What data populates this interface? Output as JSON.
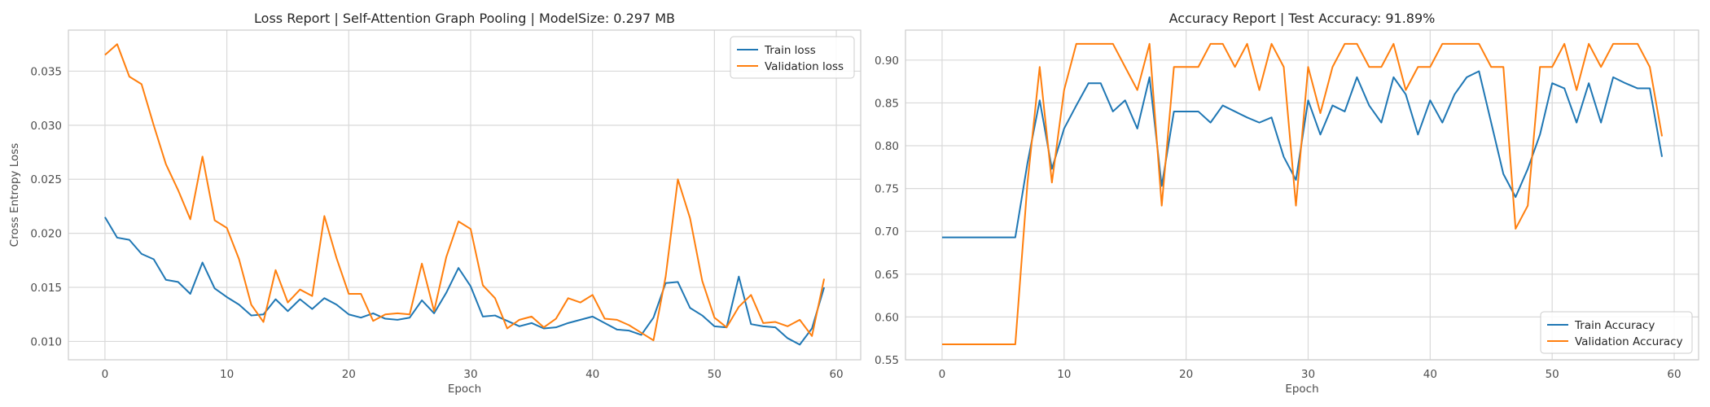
{
  "chart_data": [
    {
      "type": "line",
      "title": "Loss Report | Self-Attention Graph Pooling | ModelSize: 0.297 MB",
      "xlabel": "Epoch",
      "ylabel": "Cross Entropy Loss",
      "xlim": [
        -3,
        62
      ],
      "ylim": [
        0.0083,
        0.0388
      ],
      "xticks": [
        0,
        10,
        20,
        30,
        40,
        50,
        60
      ],
      "yticks": [
        0.01,
        0.015,
        0.02,
        0.025,
        0.03,
        0.035
      ],
      "ytick_labels": [
        "0.010",
        "0.015",
        "0.020",
        "0.025",
        "0.030",
        "0.035"
      ],
      "grid": true,
      "legend_position": "upper right",
      "x": [
        0,
        1,
        2,
        3,
        4,
        5,
        6,
        7,
        8,
        9,
        10,
        11,
        12,
        13,
        14,
        15,
        16,
        17,
        18,
        19,
        20,
        21,
        22,
        23,
        24,
        25,
        26,
        27,
        28,
        29,
        30,
        31,
        32,
        33,
        34,
        35,
        36,
        37,
        38,
        39,
        40,
        41,
        42,
        43,
        44,
        45,
        46,
        47,
        48,
        49,
        50,
        51,
        52,
        53,
        54,
        55,
        56,
        57,
        58,
        59
      ],
      "series": [
        {
          "name": "Train loss",
          "color": "#1f77b4",
          "values": [
            0.0215,
            0.0196,
            0.0194,
            0.0181,
            0.0176,
            0.0157,
            0.0155,
            0.0144,
            0.0173,
            0.0149,
            0.0141,
            0.0134,
            0.0124,
            0.0125,
            0.0139,
            0.0128,
            0.0139,
            0.013,
            0.014,
            0.0134,
            0.0125,
            0.0122,
            0.0126,
            0.0121,
            0.012,
            0.0122,
            0.0138,
            0.0126,
            0.0145,
            0.0168,
            0.0151,
            0.0123,
            0.0124,
            0.0119,
            0.0114,
            0.0117,
            0.0112,
            0.0113,
            0.0117,
            0.012,
            0.0123,
            0.0117,
            0.0111,
            0.011,
            0.0106,
            0.0122,
            0.0154,
            0.0155,
            0.0131,
            0.0124,
            0.0114,
            0.0113,
            0.016,
            0.0116,
            0.0114,
            0.0113,
            0.0103,
            0.0097,
            0.0112,
            0.015
          ]
        },
        {
          "name": "Validation loss",
          "color": "#ff7f0e",
          "values": [
            0.0365,
            0.0375,
            0.0345,
            0.0338,
            0.03,
            0.0264,
            0.024,
            0.0213,
            0.0271,
            0.0212,
            0.0205,
            0.0176,
            0.0134,
            0.0118,
            0.0166,
            0.0136,
            0.0148,
            0.0142,
            0.0216,
            0.0177,
            0.0144,
            0.0144,
            0.0119,
            0.0125,
            0.0126,
            0.0125,
            0.0172,
            0.0128,
            0.0178,
            0.0211,
            0.0204,
            0.0152,
            0.014,
            0.0112,
            0.012,
            0.0123,
            0.0113,
            0.0121,
            0.014,
            0.0136,
            0.0143,
            0.0121,
            0.012,
            0.0115,
            0.0108,
            0.0101,
            0.016,
            0.025,
            0.0214,
            0.0156,
            0.0122,
            0.0113,
            0.0132,
            0.0143,
            0.0117,
            0.0118,
            0.0114,
            0.012,
            0.0105,
            0.0158
          ]
        }
      ]
    },
    {
      "type": "line",
      "title": "Accuracy Report | Test Accuracy: 91.89%",
      "xlabel": "Epoch",
      "ylabel": "",
      "xlim": [
        -3,
        62
      ],
      "ylim": [
        0.55,
        0.935
      ],
      "xticks": [
        0,
        10,
        20,
        30,
        40,
        50,
        60
      ],
      "yticks": [
        0.55,
        0.6,
        0.65,
        0.7,
        0.75,
        0.8,
        0.85,
        0.9
      ],
      "ytick_labels": [
        "0.55",
        "0.60",
        "0.65",
        "0.70",
        "0.75",
        "0.80",
        "0.85",
        "0.90"
      ],
      "grid": true,
      "legend_position": "lower right",
      "x": [
        0,
        1,
        2,
        3,
        4,
        5,
        6,
        7,
        8,
        9,
        10,
        11,
        12,
        13,
        14,
        15,
        16,
        17,
        18,
        19,
        20,
        21,
        22,
        23,
        24,
        25,
        26,
        27,
        28,
        29,
        30,
        31,
        32,
        33,
        34,
        35,
        36,
        37,
        38,
        39,
        40,
        41,
        42,
        43,
        44,
        45,
        46,
        47,
        48,
        49,
        50,
        51,
        52,
        53,
        54,
        55,
        56,
        57,
        58,
        59
      ],
      "series": [
        {
          "name": "Train Accuracy",
          "color": "#1f77b4",
          "values": [
            0.693,
            0.693,
            0.693,
            0.693,
            0.693,
            0.693,
            0.693,
            0.78,
            0.853,
            0.773,
            0.82,
            0.847,
            0.873,
            0.873,
            0.84,
            0.853,
            0.82,
            0.88,
            0.753,
            0.84,
            0.84,
            0.84,
            0.827,
            0.847,
            0.84,
            0.833,
            0.827,
            0.833,
            0.787,
            0.76,
            0.853,
            0.813,
            0.847,
            0.84,
            0.88,
            0.847,
            0.827,
            0.88,
            0.86,
            0.813,
            0.853,
            0.827,
            0.86,
            0.88,
            0.887,
            0.827,
            0.767,
            0.74,
            0.773,
            0.813,
            0.873,
            0.867,
            0.827,
            0.873,
            0.827,
            0.88,
            0.873,
            0.867,
            0.867,
            0.787
          ]
        },
        {
          "name": "Validation Accuracy",
          "color": "#ff7f0e",
          "values": [
            0.568,
            0.568,
            0.568,
            0.568,
            0.568,
            0.568,
            0.568,
            0.757,
            0.892,
            0.757,
            0.865,
            0.919,
            0.919,
            0.919,
            0.919,
            0.892,
            0.865,
            0.919,
            0.73,
            0.892,
            0.892,
            0.892,
            0.919,
            0.919,
            0.892,
            0.919,
            0.865,
            0.919,
            0.892,
            0.73,
            0.892,
            0.838,
            0.892,
            0.919,
            0.919,
            0.892,
            0.892,
            0.919,
            0.865,
            0.892,
            0.892,
            0.919,
            0.919,
            0.919,
            0.919,
            0.892,
            0.892,
            0.703,
            0.73,
            0.892,
            0.892,
            0.919,
            0.865,
            0.919,
            0.892,
            0.919,
            0.919,
            0.919,
            0.892,
            0.811
          ]
        }
      ]
    }
  ]
}
